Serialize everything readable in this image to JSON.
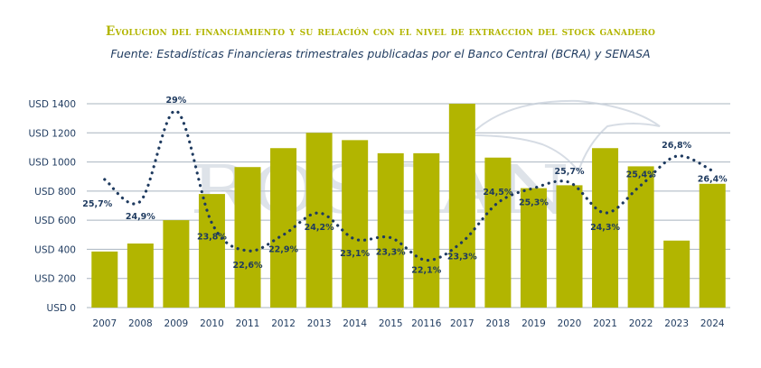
{
  "chart_data": {
    "type": "bar",
    "title": "Evolucion del financiamiento y su relación con el nivel de extraccion del stock ganadero",
    "subtitle": "Fuente: Estadísticas Financieras trimestrales publicadas por el Banco Central (BCRA) y SENASA",
    "watermark": "ROSGAN",
    "categories": [
      "2007",
      "2008",
      "2009",
      "2010",
      "2011",
      "2012",
      "2013",
      "2014",
      "2015",
      "20116",
      "2017",
      "2018",
      "2019",
      "2020",
      "2021",
      "2022",
      "2023",
      "2024"
    ],
    "ylim": [
      0,
      1400
    ],
    "yticks": [
      0,
      200,
      400,
      600,
      800,
      1000,
      1200,
      1400
    ],
    "ytick_labels": [
      "USD 0",
      "USD 200",
      "USD 400",
      "USD 600",
      "USD 800",
      "USD 1000",
      "USD 1200",
      "USD 1400"
    ],
    "grid": true,
    "series": [
      {
        "type": "bar",
        "values": [
          385,
          440,
          600,
          780,
          965,
          1095,
          1200,
          1150,
          1060,
          1060,
          1400,
          1030,
          820,
          840,
          1095,
          970,
          460,
          850
        ]
      },
      {
        "type": "line",
        "style": "dotted",
        "values_usd_scale": [
          880,
          730,
          1350,
          580,
          390,
          500,
          650,
          470,
          480,
          325,
          450,
          720,
          820,
          860,
          650,
          840,
          1040,
          940
        ],
        "labels": [
          "25,7%",
          "24,9%",
          "29%",
          "23,8%",
          "22,6%",
          "22,9%",
          "24,2%",
          "23,1%",
          "23,3%",
          "22,1%",
          "23,3%",
          "24,5%",
          "25,3%",
          "25,7%",
          "24,3%",
          "25,4%",
          "26,8%",
          "26,4%"
        ]
      }
    ],
    "colors": {
      "bar": "#b2b500",
      "line": "#1e3a5f",
      "grid": "#a9b4bf",
      "text": "#1e3a5f",
      "watermark": "#c4cdd8"
    }
  }
}
